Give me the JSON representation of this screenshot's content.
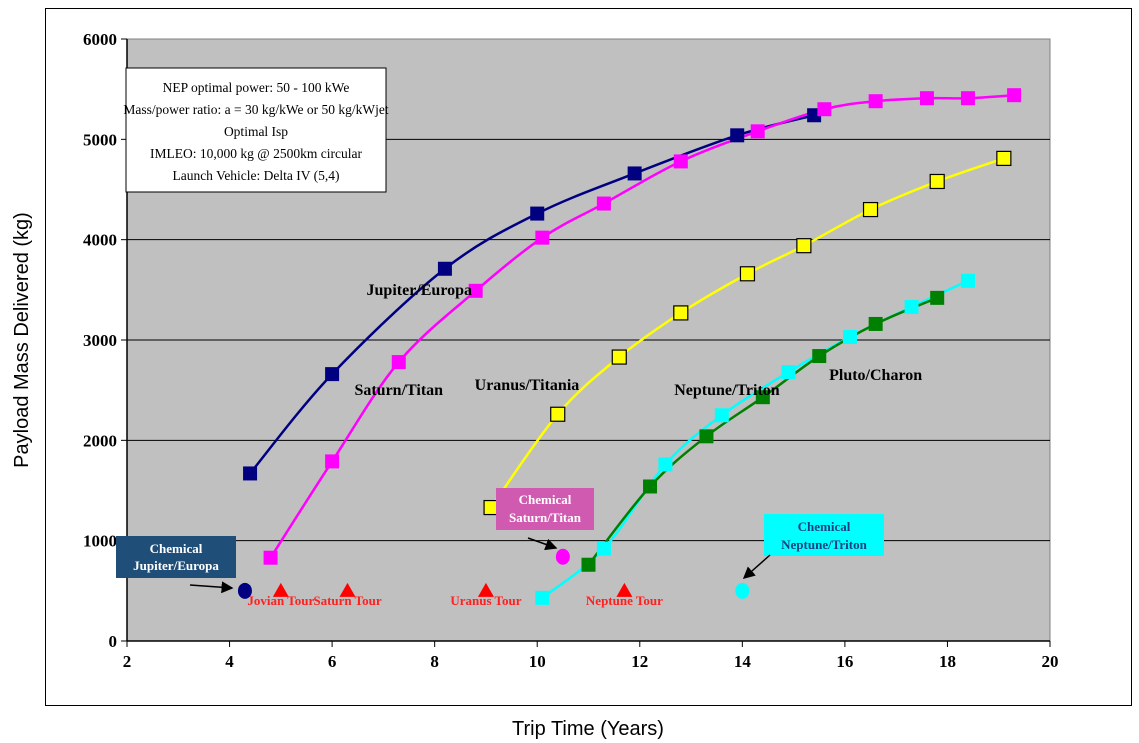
{
  "chart_data": {
    "type": "line",
    "xlabel": "Trip Time (Years)",
    "ylabel": "Payload Mass Delivered (kg)",
    "xlim": [
      2,
      20
    ],
    "ylim": [
      0,
      6000
    ],
    "x_ticks": [
      "2",
      "4",
      "6",
      "8",
      "10",
      "12",
      "14",
      "16",
      "18",
      "20"
    ],
    "y_ticks": [
      "0",
      "1000",
      "2000",
      "3000",
      "4000",
      "5000",
      "6000"
    ],
    "grid": "horizontal",
    "background": "#c0c0c0",
    "series": [
      {
        "name": "Jupiter/Europa",
        "color": "#000080",
        "marker": "filled-square",
        "marker_color": "#000080",
        "points": [
          [
            4.4,
            1670
          ],
          [
            6.0,
            2660
          ],
          [
            8.2,
            3710
          ],
          [
            10.0,
            4260
          ],
          [
            11.9,
            4660
          ],
          [
            13.9,
            5040
          ],
          [
            15.4,
            5240
          ]
        ]
      },
      {
        "name": "Saturn/Titan",
        "color": "#ff00ff",
        "marker": "filled-square",
        "marker_color": "#ff00ff",
        "points": [
          [
            4.8,
            830
          ],
          [
            6.0,
            1790
          ],
          [
            7.3,
            2780
          ],
          [
            8.8,
            3490
          ],
          [
            10.1,
            4020
          ],
          [
            11.3,
            4360
          ],
          [
            12.8,
            4780
          ],
          [
            14.3,
            5080
          ],
          [
            15.6,
            5300
          ],
          [
            16.6,
            5380
          ],
          [
            17.6,
            5410
          ],
          [
            18.4,
            5410
          ],
          [
            19.3,
            5440
          ]
        ]
      },
      {
        "name": "Uranus/Titania",
        "color": "#ffff00",
        "marker": "open-square",
        "marker_color": "#ffff00",
        "points": [
          [
            9.1,
            1330
          ],
          [
            10.4,
            2260
          ],
          [
            11.6,
            2830
          ],
          [
            12.8,
            3270
          ],
          [
            14.1,
            3660
          ],
          [
            15.2,
            3940
          ],
          [
            16.5,
            4300
          ],
          [
            17.8,
            4580
          ],
          [
            19.1,
            4810
          ]
        ]
      },
      {
        "name": "Neptune/Triton",
        "color": "#00ffff",
        "marker": "filled-square",
        "marker_color": "#00ffff",
        "points": [
          [
            10.1,
            430
          ],
          [
            11.3,
            920
          ],
          [
            12.5,
            1760
          ],
          [
            13.6,
            2250
          ],
          [
            14.9,
            2680
          ],
          [
            16.1,
            3030
          ],
          [
            17.3,
            3330
          ],
          [
            18.4,
            3590
          ]
        ]
      },
      {
        "name": "Pluto/Charon",
        "color": "#008000",
        "marker": "filled-square",
        "marker_color": "#008000",
        "points": [
          [
            11.0,
            760
          ],
          [
            12.2,
            1540
          ],
          [
            13.3,
            2040
          ],
          [
            14.4,
            2430
          ],
          [
            15.5,
            2840
          ],
          [
            16.6,
            3160
          ],
          [
            17.8,
            3420
          ]
        ]
      }
    ],
    "labels": [
      {
        "text": "Jupiter/Europa",
        "x": 7.7,
        "y": 3450
      },
      {
        "text": "Saturn/Titan",
        "x": 7.3,
        "y": 2450
      },
      {
        "text": "Uranus/Titania",
        "x": 9.8,
        "y": 2500
      },
      {
        "text": "Neptune/Triton",
        "x": 13.7,
        "y": 2450
      },
      {
        "text": "Pluto/Charon",
        "x": 16.6,
        "y": 2600
      }
    ],
    "chemical_points": [
      {
        "name": "Chemical Jupiter/Europa",
        "x": 4.3,
        "y": 500,
        "color": "#000080"
      },
      {
        "name": "Chemical Saturn/Titan",
        "x": 10.5,
        "y": 840,
        "color": "#ff00ff"
      },
      {
        "name": "Chemical Neptune/Triton",
        "x": 14.0,
        "y": 500,
        "color": "#00ffff"
      }
    ],
    "tours": [
      {
        "label": "Jovian Tour",
        "x": 5.0,
        "y": 500
      },
      {
        "label": "Saturn Tour",
        "x": 6.3,
        "y": 500
      },
      {
        "label": "Uranus Tour",
        "x": 9.0,
        "y": 500
      },
      {
        "label": "Neptune Tour",
        "x": 11.7,
        "y": 500
      }
    ],
    "annotations": {
      "chem_jupiter": {
        "line1": "Chemical",
        "line2": "Jupiter/Europa",
        "bg": "#1f4e79",
        "text_color": "#ffffff"
      },
      "chem_saturn": {
        "line1": "Chemical",
        "line2": "Saturn/Titan",
        "bg": "#d05ab0",
        "text_color": "#ffffff"
      },
      "chem_neptune": {
        "line1": "Chemical",
        "line2": "Neptune/Triton",
        "bg": "#00ffff",
        "text_color": "#1f3f7f"
      }
    },
    "info_box": [
      "NEP optimal power:  50 - 100 kWe",
      "Mass/power ratio: a = 30 kg/kWe or 50 kg/kWjet",
      "Optimal Isp",
      "IMLEO:  10,000 kg @ 2500km circular",
      "Launch Vehicle:  Delta IV (5,4)"
    ]
  }
}
